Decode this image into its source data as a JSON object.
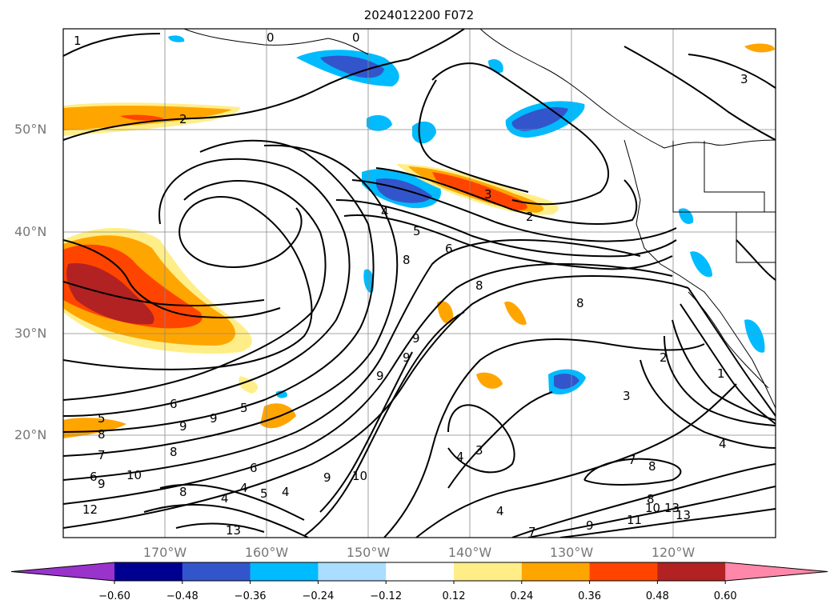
{
  "title": "2024012200 F072",
  "lat_labels": [
    "50°N",
    "40°N",
    "30°N",
    "20°N"
  ],
  "lon_labels": [
    "170°W",
    "160°W",
    "150°W",
    "140°W",
    "130°W",
    "120°W"
  ],
  "colorbar": {
    "colors": [
      "#9933cc",
      "#000090",
      "#3355cc",
      "#00bbff",
      "#aaddff",
      "#ffffff",
      "#ffee88",
      "#ffa500",
      "#ff4400",
      "#b22222",
      "#ff88aa"
    ],
    "ticks": [
      "−0.60",
      "−0.48",
      "−0.36",
      "−0.24",
      "−0.12",
      "0.12",
      "0.24",
      "0.36",
      "0.48",
      "0.60"
    ]
  },
  "contour_labels": [
    "1",
    "0",
    "0",
    "2",
    "3",
    "3",
    "2",
    "4",
    "5",
    "6",
    "8",
    "8",
    "8",
    "9",
    "9",
    "9",
    "6",
    "5",
    "8",
    "5",
    "9",
    "9",
    "8",
    "7",
    "6",
    "9",
    "10",
    "12",
    "8",
    "6",
    "4",
    "5",
    "4",
    "4",
    "13",
    "9",
    "10",
    "3",
    "4",
    "4",
    "8",
    "7",
    "2",
    "3",
    "1",
    "4",
    "9",
    "11",
    "10",
    "13",
    "13",
    "8",
    "7"
  ]
}
